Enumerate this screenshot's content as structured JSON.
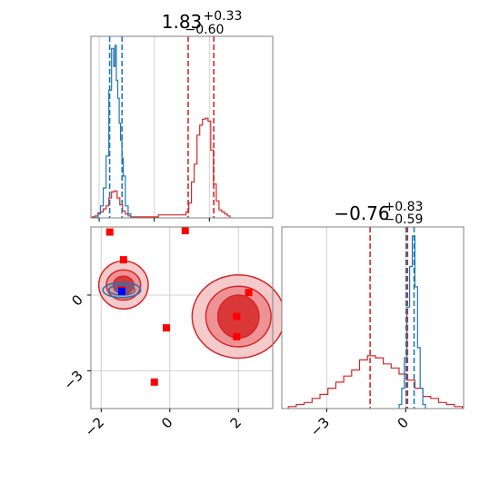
{
  "chart_data": [
    {
      "type": "histogram",
      "panel": "marginal-x",
      "title_value": "1.83",
      "title_plus": "+0.33",
      "title_minus": "−0.60",
      "xlim": [
        -2.3,
        4.3
      ],
      "grid": true,
      "x_ticks": [
        -2,
        0,
        2
      ],
      "quantile_lines": {
        "red": [
          1.23,
          2.16
        ],
        "blue": [
          -1.62,
          -1.17
        ]
      },
      "series": [
        {
          "color": "#d62728",
          "x": [
            -2.2,
            -2.1,
            -2.0,
            -1.9,
            -1.8,
            -1.7,
            -1.6,
            -1.5,
            -1.4,
            -1.3,
            -1.2,
            -1.1,
            -1.0,
            -0.9,
            -0.8,
            1.1,
            1.2,
            1.3,
            1.4,
            1.5,
            1.6,
            1.7,
            1.8,
            1.9,
            2.0,
            2.1,
            2.2,
            2.3,
            2.4,
            2.5,
            2.6,
            2.7
          ],
          "values": [
            0.01,
            0.02,
            0.05,
            0.06,
            0.09,
            0.12,
            0.2,
            0.26,
            0.27,
            0.2,
            0.13,
            0.07,
            0.04,
            0.02,
            0.01,
            0.03,
            0.06,
            0.15,
            0.36,
            0.54,
            0.83,
            0.93,
            0.99,
            1.0,
            0.97,
            0.68,
            0.34,
            0.17,
            0.08,
            0.06,
            0.04,
            0.02
          ]
        },
        {
          "color": "#1f77b4",
          "x": [
            -2.1,
            -2.0,
            -1.9,
            -1.8,
            -1.7,
            -1.6,
            -1.5,
            -1.45,
            -1.4,
            -1.35,
            -1.3,
            -1.25,
            -1.2,
            -1.15,
            -1.1,
            -1.0,
            -0.9,
            -0.8
          ],
          "values": [
            0.005,
            0.04,
            0.12,
            0.3,
            0.62,
            1.28,
            1.7,
            1.52,
            1.73,
            1.38,
            1.2,
            0.95,
            0.78,
            0.6,
            0.42,
            0.12,
            0.04,
            0.005
          ]
        }
      ]
    },
    {
      "type": "scatter",
      "panel": "joint",
      "xlim": [
        -2.3,
        3.0
      ],
      "ylim": [
        -4.5,
        2.7
      ],
      "grid": true,
      "x_ticks": [
        -2,
        0,
        2
      ],
      "y_ticks": [
        0,
        -3
      ],
      "markers": [
        {
          "x": -1.75,
          "y": 2.5
        },
        {
          "x": 0.45,
          "y": 2.7
        },
        {
          "x": -1.35,
          "y": 1.4
        },
        {
          "x": -1.4,
          "y": 0.2
        },
        {
          "x": 2.3,
          "y": 0.1
        },
        {
          "x": -0.1,
          "y": -1.3
        },
        {
          "x": 1.95,
          "y": -0.85
        },
        {
          "x": 1.95,
          "y": -1.65
        },
        {
          "x": -0.45,
          "y": -3.45
        }
      ],
      "blue_marker": {
        "x": -1.4,
        "y": 0.15
      },
      "contours": {
        "red": [
          {
            "cx": 2.0,
            "cy": -0.85,
            "rx": [
              0.6,
              0.95,
              1.35
            ],
            "ry": [
              0.85,
              1.2,
              1.65
            ]
          },
          {
            "cx": -1.35,
            "cy": 0.4,
            "rx": [
              0.3,
              0.5,
              0.72
            ],
            "ry": [
              0.35,
              0.6,
              0.95
            ]
          }
        ],
        "blue": [
          {
            "cx": -1.4,
            "cy": 0.2,
            "rx": [
              0.2,
              0.38,
              0.55
            ],
            "ry": [
              0.1,
              0.2,
              0.3
            ]
          }
        ]
      }
    },
    {
      "type": "histogram",
      "panel": "marginal-y",
      "title_value": "−0.76",
      "title_plus": "+0.83",
      "title_minus": "−0.59",
      "xlim": [
        -4.7,
        2.2
      ],
      "grid": true,
      "x_ticks": [
        -3,
        0
      ],
      "quantile_lines": {
        "red": [
          -1.35,
          0.07
        ],
        "blue": [
          0.02,
          0.32
        ]
      },
      "series": [
        {
          "color": "#d62728",
          "x": [
            -4.3,
            -4.0,
            -3.7,
            -3.4,
            -3.1,
            -2.8,
            -2.5,
            -2.2,
            -1.9,
            -1.6,
            -1.3,
            -1.0,
            -0.7,
            -0.4,
            -0.1,
            0.2,
            0.5,
            0.8,
            1.1,
            1.4,
            1.7,
            2.0
          ],
          "values": [
            0.01,
            0.02,
            0.03,
            0.05,
            0.07,
            0.1,
            0.13,
            0.16,
            0.19,
            0.24,
            0.26,
            0.25,
            0.22,
            0.2,
            0.17,
            0.14,
            0.1,
            0.06,
            0.05,
            0.03,
            0.02,
            0.01
          ]
        },
        {
          "color": "#1f77b4",
          "x": [
            -0.2,
            -0.1,
            0.0,
            0.1,
            0.2,
            0.3,
            0.4,
            0.5,
            0.6,
            0.7
          ],
          "values": [
            0.02,
            0.1,
            0.25,
            0.5,
            0.7,
            0.85,
            0.6,
            0.3,
            0.1,
            0.02
          ]
        }
      ]
    }
  ]
}
